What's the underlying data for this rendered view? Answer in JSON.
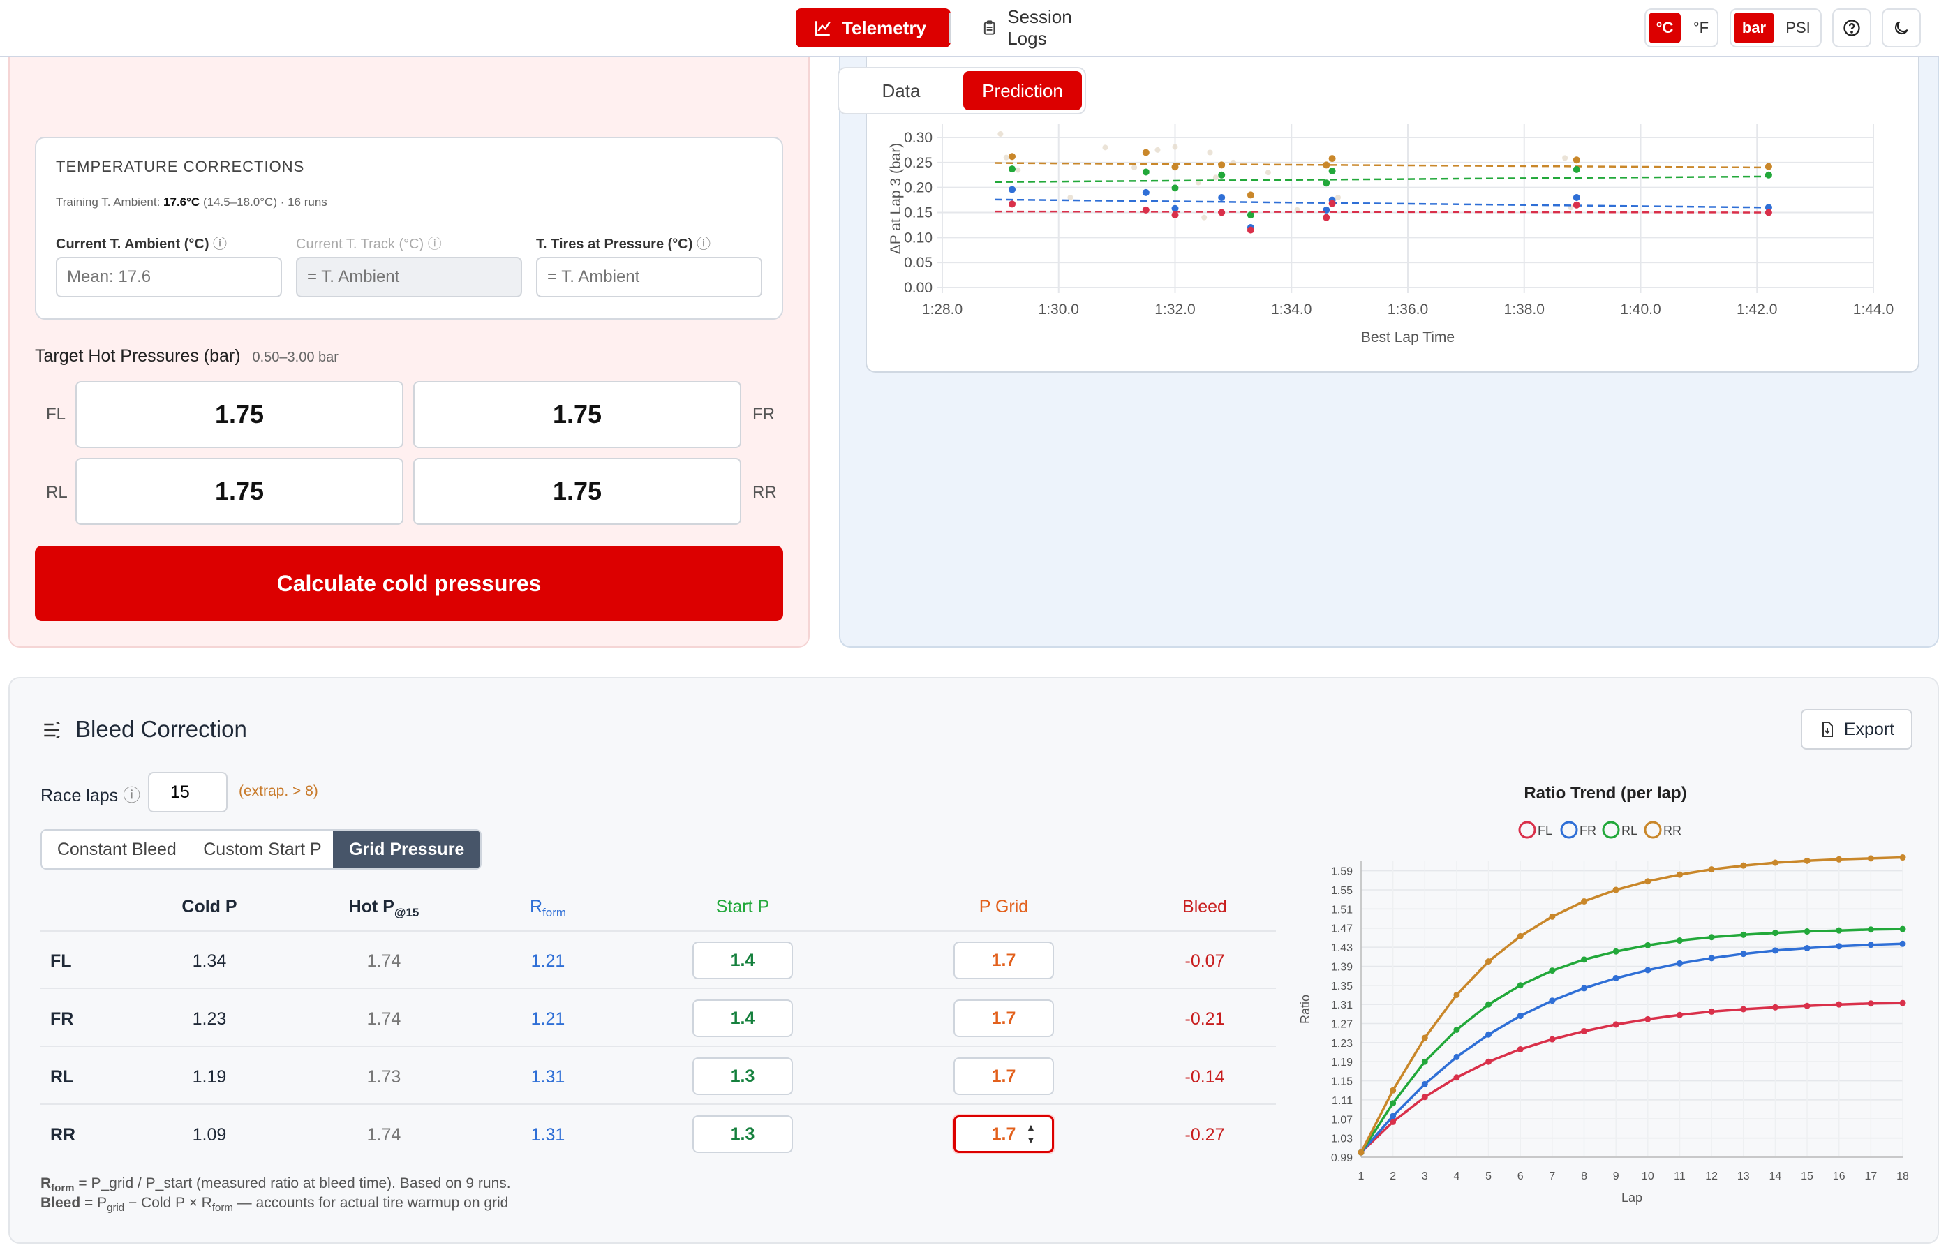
{
  "nav": {
    "telemetry": "Telemetry",
    "session_logs": "Session Logs"
  },
  "units": {
    "celsius": "°C",
    "fahrenheit": "°F",
    "bar": "bar",
    "psi": "PSI"
  },
  "view_tabs": {
    "data": "Data",
    "prediction": "Prediction"
  },
  "temp_corrections": {
    "title": "TEMPERATURE CORRECTIONS",
    "training_label": "Training T. Ambient:",
    "training_value": "17.6°C",
    "training_range": "(14.5–18.0°C) · 16 runs",
    "current_ambient_label": "Current T. Ambient (°C)",
    "current_ambient_placeholder": "Mean: 17.6",
    "current_track_label": "Current T. Track (°C)",
    "current_track_placeholder": "= T. Ambient",
    "tires_label": "T. Tires at Pressure (°C)",
    "tires_placeholder": "= T. Ambient"
  },
  "targets": {
    "title": "Target Hot Pressures (bar)",
    "range": "0.50–3.00 bar",
    "fl_label": "FL",
    "fr_label": "FR",
    "rl_label": "RL",
    "rr_label": "RR",
    "fl": "1.75",
    "fr": "1.75",
    "rl": "1.75",
    "rr": "1.75"
  },
  "calc_button": "Calculate cold pressures",
  "chart_data": [
    {
      "type": "scatter",
      "xlabel": "Best Lap Time",
      "ylabel": "ΔP at Lap 3 (bar)",
      "x_ticks": [
        "1:28.0",
        "1:30.0",
        "1:32.0",
        "1:34.0",
        "1:36.0",
        "1:38.0",
        "1:40.0",
        "1:42.0",
        "1:44.0"
      ],
      "y_ticks": [
        "0.00",
        "0.05",
        "0.10",
        "0.15",
        "0.20",
        "0.25",
        "0.30"
      ],
      "xlim": [
        88,
        104
      ],
      "ylim": [
        0,
        0.3
      ],
      "series": [
        {
          "color": "#c9872a",
          "trend": [
            [
              88.9,
              0.249
            ],
            [
              102.2,
              0.24
            ]
          ],
          "points": [
            [
              89.2,
              0.262
            ],
            [
              91.5,
              0.27
            ],
            [
              92.0,
              0.241
            ],
            [
              92.8,
              0.245
            ],
            [
              93.3,
              0.185
            ],
            [
              94.6,
              0.245
            ],
            [
              94.7,
              0.258
            ],
            [
              98.9,
              0.255
            ],
            [
              102.2,
              0.242
            ]
          ]
        },
        {
          "color": "#22a83a",
          "trend": [
            [
              88.9,
              0.211
            ],
            [
              102.2,
              0.222
            ]
          ],
          "points": [
            [
              89.2,
              0.237
            ],
            [
              91.5,
              0.231
            ],
            [
              92.0,
              0.199
            ],
            [
              92.8,
              0.225
            ],
            [
              93.3,
              0.145
            ],
            [
              94.6,
              0.209
            ],
            [
              94.7,
              0.233
            ],
            [
              98.9,
              0.236
            ],
            [
              102.2,
              0.225
            ]
          ]
        },
        {
          "color": "#2f6fd6",
          "trend": [
            [
              88.9,
              0.176
            ],
            [
              102.2,
              0.16
            ]
          ],
          "points": [
            [
              89.2,
              0.196
            ],
            [
              91.5,
              0.19
            ],
            [
              92.0,
              0.158
            ],
            [
              92.8,
              0.18
            ],
            [
              93.3,
              0.12
            ],
            [
              94.6,
              0.155
            ],
            [
              94.7,
              0.175
            ],
            [
              98.9,
              0.18
            ],
            [
              102.2,
              0.16
            ]
          ]
        },
        {
          "color": "#d9304a",
          "trend": [
            [
              88.9,
              0.152
            ],
            [
              102.2,
              0.15
            ]
          ],
          "points": [
            [
              89.2,
              0.167
            ],
            [
              91.5,
              0.155
            ],
            [
              92.0,
              0.145
            ],
            [
              92.8,
              0.15
            ],
            [
              93.3,
              0.115
            ],
            [
              94.6,
              0.14
            ],
            [
              94.7,
              0.168
            ],
            [
              98.9,
              0.165
            ],
            [
              102.2,
              0.15
            ]
          ]
        }
      ],
      "faded_points": [
        [
          89.0,
          0.307
        ],
        [
          89.1,
          0.26
        ],
        [
          89.3,
          0.235
        ],
        [
          90.2,
          0.18
        ],
        [
          90.8,
          0.28
        ],
        [
          91.3,
          0.24
        ],
        [
          91.7,
          0.275
        ],
        [
          92.0,
          0.281
        ],
        [
          92.4,
          0.21
        ],
        [
          92.5,
          0.14
        ],
        [
          92.6,
          0.27
        ],
        [
          92.7,
          0.22
        ],
        [
          93.0,
          0.25
        ],
        [
          93.6,
          0.23
        ],
        [
          94.1,
          0.155
        ],
        [
          94.8,
          0.18
        ],
        [
          98.7,
          0.259
        ],
        [
          98.8,
          0.16
        ]
      ]
    },
    {
      "type": "line",
      "title": "Ratio Trend (per lap)",
      "xlabel": "Lap",
      "ylabel": "Ratio",
      "x": [
        1,
        2,
        3,
        4,
        5,
        6,
        7,
        8,
        9,
        10,
        11,
        12,
        13,
        14,
        15,
        16,
        17,
        18
      ],
      "y_ticks": [
        "0.99",
        "1.03",
        "1.07",
        "1.11",
        "1.15",
        "1.19",
        "1.23",
        "1.27",
        "1.31",
        "1.35",
        "1.39",
        "1.43",
        "1.47",
        "1.51",
        "1.55",
        "1.59"
      ],
      "ylim": [
        0.99,
        1.61
      ],
      "series": [
        {
          "name": "FL",
          "color": "#d9304a",
          "values": [
            1.0,
            1.064,
            1.116,
            1.157,
            1.19,
            1.216,
            1.237,
            1.254,
            1.268,
            1.279,
            1.288,
            1.295,
            1.3,
            1.304,
            1.307,
            1.31,
            1.312,
            1.313
          ]
        },
        {
          "name": "FR",
          "color": "#2f6fd6",
          "values": [
            1.0,
            1.076,
            1.143,
            1.2,
            1.247,
            1.286,
            1.318,
            1.344,
            1.365,
            1.382,
            1.396,
            1.407,
            1.416,
            1.423,
            1.428,
            1.432,
            1.435,
            1.437
          ]
        },
        {
          "name": "RL",
          "color": "#22a83a",
          "values": [
            1.0,
            1.103,
            1.19,
            1.257,
            1.31,
            1.35,
            1.381,
            1.404,
            1.421,
            1.434,
            1.444,
            1.451,
            1.456,
            1.46,
            1.463,
            1.465,
            1.467,
            1.468
          ]
        },
        {
          "name": "RR",
          "color": "#c9872a",
          "values": [
            1.0,
            1.13,
            1.24,
            1.33,
            1.4,
            1.453,
            1.494,
            1.526,
            1.55,
            1.568,
            1.582,
            1.593,
            1.601,
            1.607,
            1.611,
            1.614,
            1.616,
            1.618
          ]
        }
      ]
    }
  ],
  "bleed": {
    "title": "Bleed Correction",
    "export": "Export",
    "race_laps_label": "Race laps",
    "race_laps_value": "15",
    "extrap": "(extrap. > 8)",
    "tabs": [
      "Constant Bleed",
      "Custom Start P",
      "Grid Pressure"
    ],
    "headers": {
      "cold": "Cold P",
      "hot": "Hot P",
      "hot_sub": "@15",
      "rform": "R",
      "rform_sub": "form",
      "start": "Start P",
      "grid": "P Grid",
      "bleed": "Bleed"
    },
    "rows": [
      {
        "tire": "FL",
        "cold": "1.34",
        "hot": "1.74",
        "rform": "1.21",
        "start": "1.4",
        "grid": "1.7",
        "bleed": "-0.07"
      },
      {
        "tire": "FR",
        "cold": "1.23",
        "hot": "1.74",
        "rform": "1.21",
        "start": "1.4",
        "grid": "1.7",
        "bleed": "-0.21"
      },
      {
        "tire": "RL",
        "cold": "1.19",
        "hot": "1.73",
        "rform": "1.31",
        "start": "1.3",
        "grid": "1.7",
        "bleed": "-0.14"
      },
      {
        "tire": "RR",
        "cold": "1.09",
        "hot": "1.74",
        "rform": "1.31",
        "start": "1.3",
        "grid": "1.7",
        "bleed": "-0.27"
      }
    ],
    "foot1_main": "R",
    "foot1_sub": "form",
    "foot1_text": " = P_grid / P_start (measured ratio at bleed time). Based on 9 runs.",
    "foot2_main": "Bleed",
    "foot2_a": " = P",
    "foot2_sub1": "grid",
    "foot2_b": " − Cold P × R",
    "foot2_sub2": "form",
    "foot2_c": " — accounts for actual tire warmup on grid"
  }
}
